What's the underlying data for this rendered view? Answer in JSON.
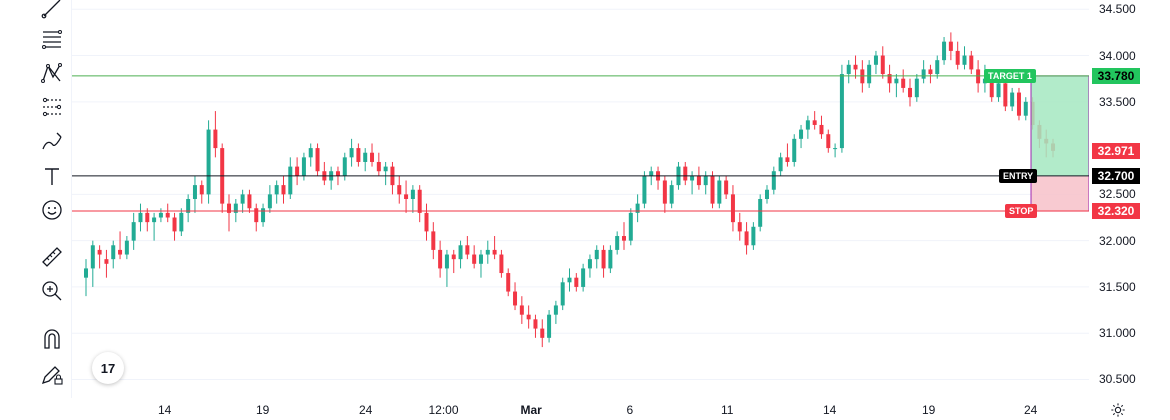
{
  "toolbar": {
    "items": [
      {
        "name": "trend-line-icon"
      },
      {
        "name": "fib-retracement-icon"
      },
      {
        "name": "pattern-icon"
      },
      {
        "name": "prediction-measure-icon"
      },
      {
        "name": "brush-icon"
      },
      {
        "name": "text-icon"
      },
      {
        "name": "emoji-icon"
      },
      {
        "name": "ruler-icon"
      },
      {
        "name": "zoom-in-icon"
      },
      {
        "name": "magnet-icon"
      },
      {
        "name": "lock-drawing-icon"
      },
      {
        "name": "lock-icon"
      }
    ]
  },
  "logo": {
    "text": "17"
  },
  "price_axis": {
    "ticks": [
      "34.500",
      "34.000",
      "33.500",
      "32.500",
      "32.000",
      "31.500",
      "31.000",
      "30.500"
    ],
    "tags": {
      "target": "33.780",
      "current": "32.971",
      "entry": "32.700",
      "stop": "32.320"
    }
  },
  "time_axis": {
    "ticks": [
      "14",
      "19",
      "24",
      "12:00",
      "Mar",
      "6",
      "11",
      "14",
      "19",
      "24"
    ]
  },
  "position": {
    "target_label": "TARGET 1",
    "entry_label": "ENTRY",
    "stop_label": "STOP"
  },
  "colors": {
    "up": "#22ab94",
    "down": "#f23645",
    "target_line": "#4caf50",
    "stop_line": "#f23645",
    "entry_line": "#131722",
    "profit_fill": "#a5e8c1",
    "loss_fill": "#f7c1c9",
    "box_border": "#9c27b0"
  },
  "chart_data": {
    "type": "candlestick",
    "y_range": [
      30.3,
      34.6
    ],
    "series_ohlc": [
      [
        31.6,
        31.8,
        31.4,
        31.7
      ],
      [
        31.7,
        32.0,
        31.5,
        31.95
      ],
      [
        31.9,
        31.95,
        31.7,
        31.85
      ],
      [
        31.8,
        31.9,
        31.6,
        31.75
      ],
      [
        31.8,
        32.0,
        31.7,
        31.95
      ],
      [
        31.9,
        32.1,
        31.8,
        31.85
      ],
      [
        31.85,
        32.05,
        31.8,
        32.0
      ],
      [
        32.0,
        32.3,
        31.9,
        32.2
      ],
      [
        32.2,
        32.4,
        32.1,
        32.3
      ],
      [
        32.3,
        32.35,
        32.1,
        32.2
      ],
      [
        32.2,
        32.3,
        32.0,
        32.25
      ],
      [
        32.25,
        32.35,
        32.2,
        32.3
      ],
      [
        32.3,
        32.4,
        32.2,
        32.25
      ],
      [
        32.25,
        32.3,
        32.0,
        32.1
      ],
      [
        32.1,
        32.35,
        32.05,
        32.3
      ],
      [
        32.3,
        32.5,
        32.2,
        32.45
      ],
      [
        32.45,
        32.7,
        32.3,
        32.6
      ],
      [
        32.6,
        32.65,
        32.4,
        32.5
      ],
      [
        32.5,
        33.3,
        32.4,
        33.2
      ],
      [
        33.2,
        33.4,
        32.9,
        33.0
      ],
      [
        33.0,
        33.05,
        32.3,
        32.4
      ],
      [
        32.4,
        32.5,
        32.1,
        32.3
      ],
      [
        32.3,
        32.45,
        32.2,
        32.4
      ],
      [
        32.4,
        32.55,
        32.3,
        32.5
      ],
      [
        32.5,
        32.55,
        32.3,
        32.35
      ],
      [
        32.35,
        32.4,
        32.1,
        32.2
      ],
      [
        32.2,
        32.4,
        32.15,
        32.35
      ],
      [
        32.35,
        32.6,
        32.3,
        32.5
      ],
      [
        32.5,
        32.65,
        32.4,
        32.6
      ],
      [
        32.6,
        32.7,
        32.4,
        32.5
      ],
      [
        32.5,
        32.9,
        32.45,
        32.8
      ],
      [
        32.8,
        32.9,
        32.6,
        32.7
      ],
      [
        32.7,
        32.95,
        32.65,
        32.9
      ],
      [
        32.9,
        33.05,
        32.8,
        33.0
      ],
      [
        33.0,
        33.05,
        32.7,
        32.75
      ],
      [
        32.75,
        32.85,
        32.6,
        32.65
      ],
      [
        32.65,
        32.8,
        32.55,
        32.75
      ],
      [
        32.75,
        32.8,
        32.6,
        32.7
      ],
      [
        32.7,
        32.95,
        32.65,
        32.9
      ],
      [
        32.9,
        33.1,
        32.8,
        33.0
      ],
      [
        33.0,
        33.05,
        32.8,
        32.85
      ],
      [
        32.85,
        33.0,
        32.75,
        32.95
      ],
      [
        32.95,
        33.05,
        32.8,
        32.85
      ],
      [
        32.85,
        32.95,
        32.7,
        32.75
      ],
      [
        32.75,
        32.85,
        32.6,
        32.8
      ],
      [
        32.8,
        32.85,
        32.5,
        32.6
      ],
      [
        32.6,
        32.7,
        32.4,
        32.5
      ],
      [
        32.5,
        32.65,
        32.3,
        32.45
      ],
      [
        32.45,
        32.6,
        32.3,
        32.55
      ],
      [
        32.55,
        32.6,
        32.2,
        32.3
      ],
      [
        32.3,
        32.4,
        32.0,
        32.1
      ],
      [
        32.1,
        32.2,
        31.8,
        31.9
      ],
      [
        31.9,
        32.0,
        31.6,
        31.7
      ],
      [
        31.7,
        31.9,
        31.5,
        31.85
      ],
      [
        31.85,
        31.9,
        31.65,
        31.8
      ],
      [
        31.8,
        32.0,
        31.7,
        31.95
      ],
      [
        31.95,
        32.05,
        31.8,
        31.85
      ],
      [
        31.85,
        31.95,
        31.7,
        31.75
      ],
      [
        31.75,
        31.9,
        31.6,
        31.85
      ],
      [
        31.85,
        32.0,
        31.75,
        31.9
      ],
      [
        31.9,
        32.05,
        31.8,
        31.85
      ],
      [
        31.85,
        31.9,
        31.6,
        31.65
      ],
      [
        31.65,
        31.7,
        31.4,
        31.45
      ],
      [
        31.45,
        31.55,
        31.25,
        31.3
      ],
      [
        31.3,
        31.4,
        31.1,
        31.2
      ],
      [
        31.2,
        31.3,
        31.05,
        31.15
      ],
      [
        31.15,
        31.2,
        30.95,
        31.05
      ],
      [
        31.05,
        31.15,
        30.85,
        30.95
      ],
      [
        30.95,
        31.25,
        30.9,
        31.2
      ],
      [
        31.2,
        31.35,
        31.1,
        31.3
      ],
      [
        31.3,
        31.6,
        31.25,
        31.55
      ],
      [
        31.55,
        31.7,
        31.45,
        31.6
      ],
      [
        31.6,
        31.65,
        31.45,
        31.5
      ],
      [
        31.5,
        31.75,
        31.45,
        31.7
      ],
      [
        31.7,
        31.85,
        31.6,
        31.8
      ],
      [
        31.8,
        31.95,
        31.7,
        31.9
      ],
      [
        31.9,
        31.95,
        31.6,
        31.7
      ],
      [
        31.7,
        31.95,
        31.65,
        31.9
      ],
      [
        31.9,
        32.1,
        31.85,
        32.05
      ],
      [
        32.05,
        32.2,
        31.9,
        32.0
      ],
      [
        32.0,
        32.35,
        31.95,
        32.3
      ],
      [
        32.3,
        32.5,
        32.2,
        32.4
      ],
      [
        32.4,
        32.75,
        32.35,
        32.7
      ],
      [
        32.7,
        32.8,
        32.6,
        32.75
      ],
      [
        32.75,
        32.8,
        32.55,
        32.65
      ],
      [
        32.65,
        32.7,
        32.3,
        32.4
      ],
      [
        32.4,
        32.65,
        32.35,
        32.6
      ],
      [
        32.6,
        32.85,
        32.55,
        32.8
      ],
      [
        32.8,
        32.85,
        32.6,
        32.65
      ],
      [
        32.65,
        32.75,
        32.5,
        32.7
      ],
      [
        32.7,
        32.8,
        32.55,
        32.6
      ],
      [
        32.6,
        32.75,
        32.5,
        32.7
      ],
      [
        32.7,
        32.75,
        32.35,
        32.4
      ],
      [
        32.4,
        32.7,
        32.35,
        32.65
      ],
      [
        32.65,
        32.7,
        32.45,
        32.5
      ],
      [
        32.5,
        32.6,
        32.1,
        32.2
      ],
      [
        32.2,
        32.3,
        32.0,
        32.1
      ],
      [
        32.1,
        32.2,
        31.85,
        31.95
      ],
      [
        31.95,
        32.2,
        31.9,
        32.15
      ],
      [
        32.15,
        32.5,
        32.1,
        32.45
      ],
      [
        32.45,
        32.6,
        32.4,
        32.55
      ],
      [
        32.55,
        32.8,
        32.5,
        32.75
      ],
      [
        32.75,
        32.95,
        32.7,
        32.9
      ],
      [
        32.9,
        33.05,
        32.8,
        32.85
      ],
      [
        32.85,
        33.15,
        32.8,
        33.1
      ],
      [
        33.1,
        33.25,
        33.0,
        33.2
      ],
      [
        33.2,
        33.35,
        33.1,
        33.3
      ],
      [
        33.3,
        33.4,
        33.2,
        33.25
      ],
      [
        33.25,
        33.35,
        33.1,
        33.15
      ],
      [
        33.15,
        33.2,
        32.95,
        33.0
      ],
      [
        33.0,
        33.05,
        32.9,
        33.0
      ],
      [
        33.0,
        33.9,
        32.95,
        33.8
      ],
      [
        33.8,
        33.95,
        33.7,
        33.9
      ],
      [
        33.9,
        34.0,
        33.75,
        33.85
      ],
      [
        33.85,
        33.95,
        33.6,
        33.7
      ],
      [
        33.7,
        33.95,
        33.65,
        33.9
      ],
      [
        33.9,
        34.05,
        33.8,
        34.0
      ],
      [
        34.0,
        34.1,
        33.75,
        33.8
      ],
      [
        33.8,
        33.9,
        33.6,
        33.7
      ],
      [
        33.7,
        33.8,
        33.55,
        33.75
      ],
      [
        33.75,
        33.85,
        33.6,
        33.65
      ],
      [
        33.65,
        33.75,
        33.45,
        33.55
      ],
      [
        33.55,
        33.8,
        33.5,
        33.75
      ],
      [
        33.75,
        33.95,
        33.7,
        33.85
      ],
      [
        33.85,
        33.9,
        33.7,
        33.8
      ],
      [
        33.8,
        34.0,
        33.75,
        33.95
      ],
      [
        33.95,
        34.2,
        33.9,
        34.15
      ],
      [
        34.15,
        34.25,
        33.95,
        34.05
      ],
      [
        34.05,
        34.15,
        33.85,
        33.9
      ],
      [
        33.9,
        34.1,
        33.85,
        34.0
      ],
      [
        34.0,
        34.05,
        33.8,
        33.85
      ],
      [
        33.85,
        33.95,
        33.6,
        33.7
      ],
      [
        33.7,
        33.9,
        33.6,
        33.75
      ],
      [
        33.75,
        33.85,
        33.5,
        33.55
      ],
      [
        33.55,
        33.8,
        33.5,
        33.7
      ],
      [
        33.7,
        33.75,
        33.4,
        33.45
      ],
      [
        33.45,
        33.65,
        33.4,
        33.6
      ],
      [
        33.6,
        33.65,
        33.3,
        33.35
      ],
      [
        33.35,
        33.55,
        33.3,
        33.5
      ],
      [
        33.5,
        33.55,
        33.2,
        33.25
      ],
      [
        33.25,
        33.3,
        33.0,
        33.1
      ],
      [
        33.1,
        33.2,
        32.9,
        33.05
      ],
      [
        33.05,
        33.1,
        32.9,
        32.97
      ]
    ]
  }
}
